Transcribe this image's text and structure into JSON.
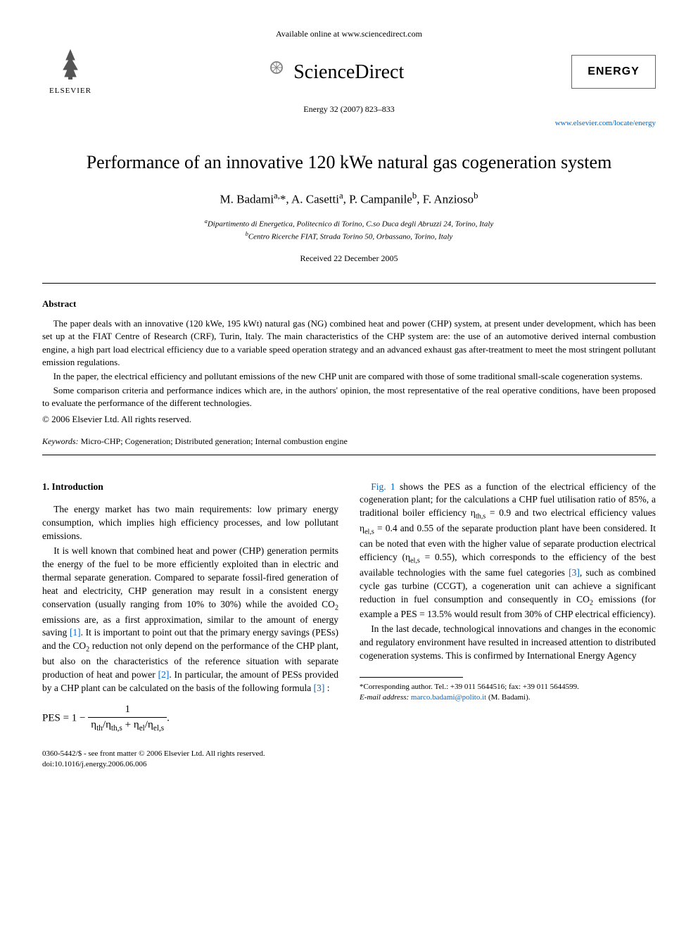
{
  "header": {
    "available_online": "Available online at www.sciencedirect.com",
    "sciencedirect": "ScienceDirect",
    "elsevier": "ELSEVIER",
    "journal_box": "ENERGY",
    "citation": "Energy 32 (2007) 823–833",
    "journal_url": "www.elsevier.com/locate/energy"
  },
  "title": "Performance of an innovative 120 kWe natural gas cogeneration system",
  "authors": "M. Badami<sup>a,</sup>*, A. Casetti<sup>a</sup>, P. Campanile<sup>b</sup>, F. Anzioso<sup>b</sup>",
  "affiliations": {
    "a": "<sup>a</sup>Dipartimento di Energetica, Politecnico di Torino, C.so Duca degli Abruzzi 24, Torino, Italy",
    "b": "<sup>b</sup>Centro Ricerche FIAT, Strada Torino 50, Orbassano, Torino, Italy"
  },
  "received": "Received 22 December 2005",
  "abstract": {
    "heading": "Abstract",
    "p1": "The paper deals with an innovative (120 kWe, 195 kWt) natural gas (NG) combined heat and power (CHP) system, at present under development, which has been set up at the FIAT Centre of Research (CRF), Turin, Italy. The main characteristics of the CHP system are: the use of an automotive derived internal combustion engine, a high part load electrical efficiency due to a variable speed operation strategy and an advanced exhaust gas after-treatment to meet the most stringent pollutant emission regulations.",
    "p2": "In the paper, the electrical efficiency and pollutant emissions of the new CHP unit are compared with those of some traditional small-scale cogeneration systems.",
    "p3": "Some comparison criteria and performance indices which are, in the authors' opinion, the most representative of the real operative conditions, have been proposed to evaluate the performance of the different technologies.",
    "copyright": "© 2006 Elsevier Ltd. All rights reserved."
  },
  "keywords": {
    "label": "Keywords:",
    "text": " Micro-CHP; Cogeneration; Distributed generation; Internal combustion engine"
  },
  "section1": {
    "heading": "1. Introduction",
    "p1": "The energy market has two main requirements: low primary energy consumption, which implies high efficiency processes, and low pollutant emissions.",
    "p2_a": "It is well known that combined heat and power (CHP) generation permits the energy of the fuel to be more efficiently exploited than in electric and thermal separate generation. Compared to separate fossil-fired generation of heat and electricity, CHP generation may result in a consistent energy conservation (usually ranging from 10% to 30%) while the avoided CO",
    "p2_b": " emissions are, as a first approximation, similar to the amount of energy saving ",
    "ref1": "[1]",
    "p2_c": ". It is important to point out that the primary energy savings (PESs) and the CO",
    "p2_d": " reduction not only depend on the performance of the CHP plant, but also on the characteristics of the reference situation with separate production of heat and power ",
    "ref2": "[2]",
    "p2_e": ". In particular, the amount of PESs provided by a CHP plant can be calculated on the basis of ",
    "p2_f": "the following formula ",
    "ref3": "[3]",
    "p2_g": " :",
    "fig1": "Fig. 1",
    "p3_a": " shows the PES as a function of the electrical efficiency of the cogeneration plant; for the calculations a CHP fuel utilisation ratio of 85%, a traditional boiler efficiency η",
    "p3_b": " = 0.9 and two electrical efficiency values η",
    "p3_c": " = 0.4 and 0.55 of the separate production plant have been considered. It can be noted that even with the higher value of separate production electrical efficiency (η",
    "p3_d": " = 0.55), which corresponds to the efficiency of the best available technologies with the same fuel categories ",
    "ref3b": "[3]",
    "p3_e": ", such as combined cycle gas turbine (CCGT), a cogeneration unit can achieve a significant reduction in fuel consumption and consequently in CO",
    "p3_f": " emissions (for example a PES = 13.5% would result from 30% of CHP electrical efficiency).",
    "p4": "In the last decade, technological innovations and changes in the economic and regulatory environment have resulted in increased attention to distributed cogeneration systems. This is confirmed by International Energy Agency"
  },
  "equation": {
    "lhs": "PES = 1 − ",
    "num": "1",
    "den": "η<sub>th</sub>/η<sub>th,s</sub> + η<sub>el</sub>/η<sub>el,s</sub>",
    "end": "."
  },
  "footnote": {
    "corresponding": "*Corresponding author. Tel.: +39 011 5644516; fax: +39 011 5644599.",
    "email_label": "E-mail address:",
    "email": " marco.badami@polito.it",
    "email_suffix": " (M. Badami)."
  },
  "footer": {
    "left1": "0360-5442/$ - see front matter © 2006 Elsevier Ltd. All rights reserved.",
    "left2": "doi:10.1016/j.energy.2006.06.006"
  },
  "colors": {
    "text": "#000000",
    "link": "#0066cc",
    "background": "#ffffff"
  }
}
